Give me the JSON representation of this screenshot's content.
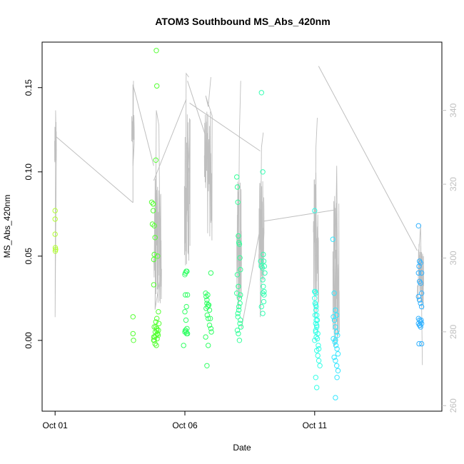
{
  "chart_data": {
    "type": "scatter",
    "title": "ATOM3 Southbound MS_Abs_420nm",
    "xlabel": "Date",
    "ylabel": "MS_Abs_420nm",
    "x_unit": "day of October 2016 (fractional)",
    "xlim": [
      0.5,
      15.9
    ],
    "ylim": [
      -0.042,
      0.177
    ],
    "xticks": [
      1,
      6,
      11
    ],
    "xtick_labels": [
      "Oct 01",
      "Oct 06",
      "Oct 11"
    ],
    "yticks": [
      0.0,
      0.05,
      0.1,
      0.15
    ],
    "ytick_labels": [
      "0.00",
      "0.05",
      "0.10",
      "0.15"
    ],
    "y2lim": [
      258.5,
      358.5
    ],
    "y2ticks": [
      260,
      280,
      300,
      320,
      340
    ],
    "y2tick_labels": [
      "260",
      "280",
      "300",
      "320",
      "340"
    ],
    "grid": false,
    "legend": "none",
    "colors": {
      "axis": "#000000",
      "secondary_line": "#bfbfbf",
      "secondary_axis_text": "#bfbfbf"
    },
    "secondary_series": {
      "name": "",
      "axis": "right",
      "color": "#bfbfbf",
      "segments": [
        {
          "t0": 0.98,
          "t1": 1.05,
          "center": 331,
          "amp": 6,
          "spikes": [
            [
              1.0,
              284
            ],
            [
              1.02,
              340
            ],
            [
              1.04,
              332
            ]
          ]
        },
        {
          "t0": 3.95,
          "t1": 4.05,
          "center": 335,
          "amp": 4,
          "spikes": [
            [
              4.0,
              325
            ],
            [
              4.02,
              348
            ]
          ]
        },
        {
          "t0": 4.8,
          "t1": 5.1,
          "center": 305,
          "amp": 18,
          "spikes": [
            [
              4.85,
              286
            ],
            [
              4.9,
              340
            ],
            [
              5.0,
              336
            ],
            [
              5.05,
              296
            ]
          ]
        },
        {
          "t0": 5.98,
          "t1": 6.2,
          "center": 320,
          "amp": 22,
          "spikes": [
            [
              6.02,
              302
            ],
            [
              6.05,
              350
            ],
            [
              6.15,
              349
            ]
          ]
        },
        {
          "t0": 6.75,
          "t1": 7.05,
          "center": 322,
          "amp": 18,
          "spikes": [
            [
              6.8,
              344
            ],
            [
              6.9,
              341
            ],
            [
              7.0,
              349
            ]
          ]
        },
        {
          "t0": 8.0,
          "t1": 8.18,
          "center": 306,
          "amp": 18,
          "spikes": [
            [
              8.05,
              286
            ],
            [
              8.1,
              334
            ],
            [
              8.15,
              348
            ]
          ]
        },
        {
          "t0": 8.85,
          "t1": 9.05,
          "center": 306,
          "amp": 16,
          "spikes": [
            [
              8.9,
              284
            ],
            [
              8.95,
              330
            ],
            [
              9.02,
              334
            ]
          ]
        },
        {
          "t0": 10.95,
          "t1": 11.15,
          "center": 306,
          "amp": 18,
          "spikes": [
            [
              11.0,
              284
            ],
            [
              11.05,
              330
            ],
            [
              11.1,
              338
            ]
          ]
        },
        {
          "t0": 11.7,
          "t1": 11.95,
          "center": 297,
          "amp": 20,
          "spikes": [
            [
              11.75,
              276
            ],
            [
              11.85,
              325
            ],
            [
              11.9,
              284
            ]
          ]
        },
        {
          "t0": 14.95,
          "t1": 15.2,
          "center": 296,
          "amp": 10,
          "spikes": [
            [
              15.0,
              300
            ],
            [
              15.08,
              309
            ],
            [
              15.15,
              271
            ]
          ]
        }
      ],
      "connectors": [
        [
          [
            1.02,
            333
          ],
          [
            4.0,
            315
          ]
        ],
        [
          [
            4.0,
            315
          ],
          [
            4.0,
            347
          ]
        ],
        [
          [
            4.0,
            347
          ],
          [
            4.8,
            325
          ]
        ],
        [
          [
            4.8,
            321
          ],
          [
            6.05,
            343
          ]
        ],
        [
          [
            6.1,
            348
          ],
          [
            6.8,
            333
          ]
        ],
        [
          [
            6.18,
            342
          ],
          [
            8.9,
            329
          ]
        ],
        [
          [
            8.18,
            281
          ],
          [
            8.95,
            310
          ]
        ],
        [
          [
            9.05,
            310
          ],
          [
            11.75,
            313
          ]
        ],
        [
          [
            11.15,
            352
          ],
          [
            14.95,
            302
          ]
        ]
      ]
    },
    "series": [
      {
        "name": "",
        "color": "#b2ff33",
        "x": [
          1.0,
          1.0,
          1.0,
          1.01,
          1.01,
          1.02
        ],
        "y": [
          0.077,
          0.072,
          0.063,
          0.055,
          0.053,
          0.054
        ]
      },
      {
        "name": "",
        "color": "#55ff33",
        "x": [
          4.0,
          4.0,
          4.02,
          4.72,
          4.75,
          4.78,
          4.78,
          4.8,
          4.82,
          4.85,
          4.88,
          4.9,
          4.92,
          4.95,
          4.98,
          5.0,
          4.8,
          4.82,
          4.86,
          4.88,
          4.92,
          4.95,
          4.8,
          4.82,
          4.85,
          4.9,
          4.93,
          4.97,
          4.88,
          4.92,
          4.95,
          4.98,
          4.8,
          4.84,
          4.88,
          4.92,
          4.78,
          4.82
        ],
        "y": [
          0.014,
          0.004,
          0.0,
          0.082,
          0.069,
          0.081,
          0.077,
          0.048,
          0.051,
          0.061,
          0.107,
          0.172,
          0.151,
          0.05,
          0.017,
          0.01,
          0.033,
          0.008,
          0.005,
          0.003,
          0.006,
          0.004,
          0.002,
          0.0,
          -0.002,
          -0.003,
          0.001,
          0.003,
          0.011,
          0.013,
          0.004,
          0.006,
          0.0,
          0.002,
          0.008,
          0.007,
          0.081,
          0.068
        ]
      },
      {
        "name": "",
        "color": "#33ff66",
        "x": [
          6.0,
          6.02,
          6.05,
          6.08,
          6.1,
          6.02,
          6.06,
          6.0,
          6.04,
          6.08,
          6.02,
          6.05,
          6.1,
          5.95,
          6.0,
          6.03,
          6.07,
          6.8,
          6.82,
          6.85,
          6.88,
          6.92,
          6.95,
          6.98,
          7.0,
          6.82,
          6.86,
          6.9,
          6.95,
          6.8,
          6.85,
          6.9,
          7.0,
          7.02,
          6.85,
          6.88,
          6.9
        ],
        "y": [
          0.039,
          0.04,
          0.041,
          0.041,
          0.027,
          0.027,
          0.02,
          0.017,
          0.012,
          0.007,
          0.006,
          0.005,
          0.004,
          -0.003,
          0.005,
          0.006,
          0.004,
          0.028,
          0.026,
          0.022,
          0.02,
          0.021,
          0.018,
          0.013,
          0.04,
          0.019,
          0.015,
          0.013,
          0.009,
          0.002,
          -0.015,
          -0.003,
          0.007,
          0.005,
          0.024,
          0.027,
          0.021
        ]
      },
      {
        "name": "",
        "color": "#33ff99",
        "x": [
          8.0,
          8.02,
          8.04,
          8.06,
          8.08,
          8.1,
          8.12,
          8.14,
          8.02,
          8.06,
          8.1,
          8.14,
          8.0,
          8.04,
          8.08,
          8.12,
          8.16,
          8.02,
          8.06,
          8.1,
          8.14,
          8.04,
          8.08,
          8.12
        ],
        "y": [
          0.097,
          0.091,
          0.082,
          0.062,
          0.058,
          0.057,
          0.049,
          0.042,
          0.039,
          0.032,
          0.025,
          0.027,
          0.028,
          0.016,
          0.02,
          0.01,
          0.008,
          0.006,
          0.004,
          0.0,
          0.012,
          0.014,
          0.018,
          0.022
        ]
      },
      {
        "name": "",
        "color": "#33ffb2",
        "x": [
          8.95,
          9.0,
          9.02,
          9.04,
          9.06,
          9.08,
          8.92,
          8.95,
          8.98,
          9.0,
          9.02,
          9.05,
          9.0,
          9.04,
          8.95,
          9.0,
          9.05
        ],
        "y": [
          0.147,
          0.1,
          0.051,
          0.047,
          0.044,
          0.04,
          0.047,
          0.044,
          0.043,
          0.036,
          0.032,
          0.029,
          0.028,
          0.023,
          0.02,
          0.016,
          0.027
        ]
      },
      {
        "name": "",
        "color": "#33ffe6",
        "x": [
          11.0,
          11.02,
          11.04,
          11.0,
          11.02,
          11.04,
          11.06,
          11.02,
          11.06,
          11.08,
          11.04,
          11.0,
          11.02,
          11.05,
          11.08,
          11.1,
          11.04,
          11.08,
          11.0,
          11.06,
          11.12,
          11.16,
          11.04,
          11.1,
          11.14,
          11.08,
          11.12,
          11.16,
          11.2,
          11.04,
          11.08
        ],
        "y": [
          0.077,
          0.029,
          0.028,
          0.025,
          0.022,
          0.021,
          0.02,
          0.015,
          0.012,
          0.009,
          0.005,
          0.029,
          0.022,
          0.018,
          0.015,
          0.012,
          -0.022,
          -0.028,
          0.0,
          0.002,
          0.004,
          -0.005,
          0.006,
          0.001,
          -0.003,
          -0.006,
          -0.009,
          -0.012,
          -0.015,
          0.01,
          0.008
        ]
      },
      {
        "name": "",
        "color": "#33e6ff",
        "x": [
          11.7,
          11.75,
          11.8,
          11.85,
          11.72,
          11.76,
          11.8,
          11.84,
          11.88,
          11.72,
          11.78,
          11.82,
          11.86,
          11.9,
          11.75,
          11.8,
          11.85,
          11.9,
          11.8,
          11.86,
          11.8
        ],
        "y": [
          0.06,
          0.028,
          0.018,
          0.015,
          0.014,
          0.012,
          0.008,
          0.005,
          0.003,
          0.001,
          -0.001,
          -0.003,
          -0.005,
          -0.008,
          -0.01,
          -0.012,
          -0.015,
          -0.018,
          -0.034,
          -0.022,
          0.0
        ]
      },
      {
        "name": "",
        "color": "#33b2ff",
        "x": [
          15.0,
          15.04,
          15.08,
          15.12,
          15.0,
          15.04,
          15.08,
          15.12,
          15.0,
          15.04,
          15.08,
          15.12,
          15.0,
          15.04,
          15.08,
          15.12,
          15.0,
          15.04,
          15.08,
          15.12,
          15.02,
          15.06,
          15.1,
          15.02
        ],
        "y": [
          0.068,
          0.047,
          0.046,
          0.04,
          0.04,
          0.035,
          0.034,
          0.028,
          0.026,
          0.024,
          0.022,
          0.02,
          0.013,
          0.012,
          0.011,
          0.01,
          0.01,
          0.009,
          0.008,
          -0.002,
          -0.002,
          0.009,
          0.012,
          0.044
        ]
      }
    ]
  }
}
